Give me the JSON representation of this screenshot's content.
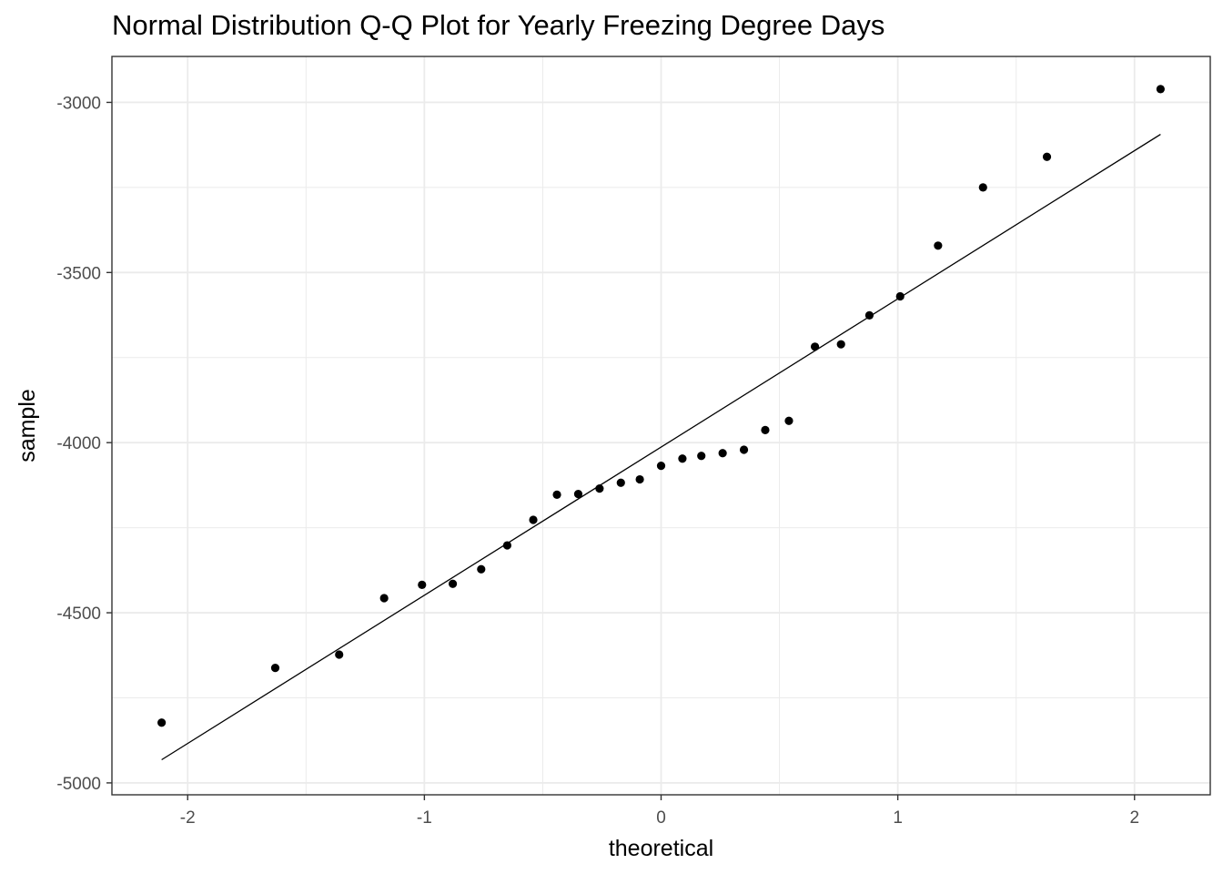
{
  "chart_data": {
    "type": "scatter",
    "title": "Normal Distribution Q-Q Plot for Yearly Freezing Degree Days",
    "xlabel": "theoretical",
    "ylabel": "sample",
    "xlim": [
      -2.32,
      2.32
    ],
    "ylim": [
      -5035,
      -2865
    ],
    "x_ticks": [
      -2,
      -1,
      0,
      1,
      2
    ],
    "x_tick_labels": [
      "-2",
      "-1",
      "0",
      "1",
      "2"
    ],
    "y_ticks": [
      -5000,
      -4500,
      -4000,
      -3500,
      -3000
    ],
    "y_tick_labels": [
      "-5000",
      "-4500",
      "-4000",
      "-3500",
      "-3000"
    ],
    "x_minor": [
      -1.5,
      -0.5,
      0.5,
      1.5
    ],
    "y_minor": [
      -4750,
      -4250,
      -3750,
      -3250
    ],
    "grid": true,
    "reference_line": {
      "x": [
        -2.11,
        2.11
      ],
      "y": [
        -4932,
        -3094
      ]
    },
    "points": [
      {
        "x": -2.11,
        "y": -4823
      },
      {
        "x": -1.63,
        "y": -4662
      },
      {
        "x": -1.36,
        "y": -4623
      },
      {
        "x": -1.17,
        "y": -4457
      },
      {
        "x": -1.01,
        "y": -4418
      },
      {
        "x": -0.88,
        "y": -4415
      },
      {
        "x": -0.76,
        "y": -4372
      },
      {
        "x": -0.65,
        "y": -4302
      },
      {
        "x": -0.54,
        "y": -4227
      },
      {
        "x": -0.44,
        "y": -4153
      },
      {
        "x": -0.35,
        "y": -4151
      },
      {
        "x": -0.26,
        "y": -4135
      },
      {
        "x": -0.17,
        "y": -4118
      },
      {
        "x": -0.09,
        "y": -4108
      },
      {
        "x": 0.0,
        "y": -4068
      },
      {
        "x": 0.09,
        "y": -4047
      },
      {
        "x": 0.17,
        "y": -4039
      },
      {
        "x": 0.26,
        "y": -4031
      },
      {
        "x": 0.35,
        "y": -4021
      },
      {
        "x": 0.44,
        "y": -3963
      },
      {
        "x": 0.54,
        "y": -3936
      },
      {
        "x": 0.65,
        "y": -3718
      },
      {
        "x": 0.76,
        "y": -3711
      },
      {
        "x": 0.88,
        "y": -3626
      },
      {
        "x": 1.01,
        "y": -3570
      },
      {
        "x": 1.17,
        "y": -3421
      },
      {
        "x": 1.36,
        "y": -3250
      },
      {
        "x": 1.63,
        "y": -3160
      },
      {
        "x": 2.11,
        "y": -2961
      }
    ],
    "point_color": "#000000",
    "line_color": "#000000",
    "grid_color": "#ebebeb",
    "panel_border_color": "#333333"
  }
}
